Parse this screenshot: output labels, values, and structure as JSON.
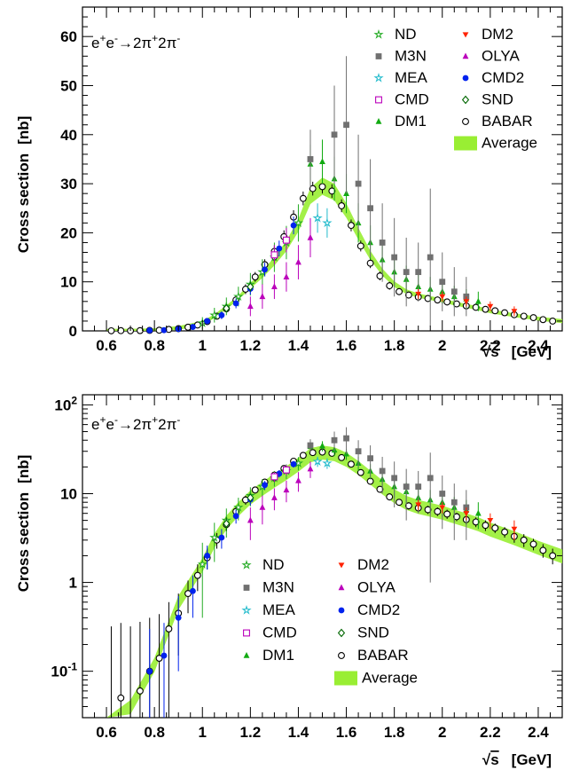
{
  "process": {
    "base": "e",
    "sup1": "+",
    "mid": "e",
    "sup2": "-",
    "arrow": "→",
    "two_a": "2π",
    "sup3": "+",
    "two_b": "2π",
    "sup4": "-"
  },
  "xlabel": {
    "sqrt": "√",
    "s": "s",
    "unit": "[GeV]"
  },
  "ylabel": {
    "text": "Cross section",
    "unit": "[nb]"
  },
  "legend": [
    {
      "name": "ND",
      "color": "#22aa22",
      "marker": "star-open"
    },
    {
      "name": "DM2",
      "color": "#ff2200",
      "marker": "triangle-down"
    },
    {
      "name": "M3N",
      "color": "#707070",
      "marker": "square"
    },
    {
      "name": "OLYA",
      "color": "#bb00bb",
      "marker": "triangle-up"
    },
    {
      "name": "MEA",
      "color": "#22bbcc",
      "marker": "star-open"
    },
    {
      "name": "CMD2",
      "color": "#0022ee",
      "marker": "circle"
    },
    {
      "name": "CMD",
      "color": "#bb00bb",
      "marker": "square-open"
    },
    {
      "name": "SND",
      "color": "#006600",
      "marker": "diamond-open"
    },
    {
      "name": "DM1",
      "color": "#11aa11",
      "marker": "triangle-up"
    },
    {
      "name": "BABAR",
      "color": "#000000",
      "marker": "circle-open"
    },
    {
      "name": "Average",
      "color": "#99ee33",
      "marker": "box"
    }
  ],
  "chart_data": [
    {
      "type": "scatter",
      "yscale": "linear",
      "xlim": [
        0.5,
        2.5
      ],
      "ylim": [
        0,
        66
      ],
      "xticks": [
        "0.6",
        "0.8",
        "1",
        "1.2",
        "1.4",
        "1.6",
        "1.8",
        "2",
        "2.2",
        "2.4"
      ],
      "yticks": [
        "0",
        "10",
        "20",
        "30",
        "40",
        "50",
        "60"
      ],
      "legend_position": "top-right",
      "average_band": [
        [
          0.6,
          0.02
        ],
        [
          0.7,
          0.04
        ],
        [
          0.8,
          0.12
        ],
        [
          0.9,
          0.6
        ],
        [
          1.0,
          1.6
        ],
        [
          1.05,
          3.0
        ],
        [
          1.1,
          4.8
        ],
        [
          1.15,
          6.8
        ],
        [
          1.2,
          9.2
        ],
        [
          1.25,
          11.5
        ],
        [
          1.3,
          14.2
        ],
        [
          1.35,
          17.3
        ],
        [
          1.4,
          21.5
        ],
        [
          1.45,
          27.5
        ],
        [
          1.5,
          29.5
        ],
        [
          1.55,
          28.3
        ],
        [
          1.6,
          24.5
        ],
        [
          1.65,
          19.8
        ],
        [
          1.7,
          15.4
        ],
        [
          1.75,
          12.0
        ],
        [
          1.8,
          9.5
        ],
        [
          1.85,
          8.0
        ],
        [
          1.9,
          7.2
        ],
        [
          1.95,
          6.7
        ],
        [
          2.0,
          6.2
        ],
        [
          2.05,
          5.6
        ],
        [
          2.1,
          5.1
        ],
        [
          2.15,
          4.6
        ],
        [
          2.2,
          4.0
        ],
        [
          2.3,
          3.2
        ],
        [
          2.4,
          2.5
        ],
        [
          2.5,
          2.0
        ]
      ],
      "series": [
        {
          "name": "BABAR",
          "x": [
            0.62,
            0.66,
            0.7,
            0.74,
            0.78,
            0.82,
            0.86,
            0.9,
            0.94,
            0.98,
            1.02,
            1.06,
            1.1,
            1.14,
            1.18,
            1.22,
            1.26,
            1.3,
            1.34,
            1.38,
            1.42,
            1.46,
            1.5,
            1.54,
            1.58,
            1.62,
            1.66,
            1.7,
            1.74,
            1.78,
            1.82,
            1.86,
            1.9,
            1.94,
            1.98,
            2.02,
            2.06,
            2.1,
            2.14,
            2.18,
            2.22,
            2.26,
            2.3,
            2.34,
            2.38,
            2.42,
            2.46
          ],
          "y": [
            0.02,
            0.05,
            0.02,
            0.06,
            0.1,
            0.14,
            0.3,
            0.45,
            0.75,
            1.2,
            1.9,
            3.0,
            4.5,
            6.3,
            8.5,
            11.0,
            13.5,
            16.2,
            19.2,
            23.2,
            27.0,
            29.0,
            29.4,
            28.5,
            25.5,
            21.5,
            17.3,
            13.8,
            11.2,
            9.2,
            8.0,
            7.3,
            6.9,
            6.6,
            6.3,
            5.9,
            5.5,
            5.1,
            4.8,
            4.4,
            4.1,
            3.7,
            3.3,
            3.0,
            2.7,
            2.3,
            2.0
          ],
          "err": [
            0.3,
            0.3,
            0.3,
            0.3,
            0.3,
            0.3,
            0.3,
            0.3,
            0.3,
            0.4,
            0.5,
            0.6,
            0.7,
            0.8,
            1.0,
            1.0,
            1.1,
            1.2,
            1.3,
            1.4,
            1.4,
            1.4,
            1.4,
            1.4,
            1.3,
            1.2,
            1.1,
            1.0,
            0.9,
            0.8,
            0.7,
            0.7,
            0.7,
            0.7,
            0.7,
            0.7,
            0.6,
            0.6,
            0.6,
            0.6,
            0.5,
            0.5,
            0.5,
            0.5,
            0.4,
            0.4,
            0.4
          ]
        },
        {
          "name": "ND",
          "x": [
            1.0,
            1.05,
            1.1,
            1.15,
            1.2,
            1.25,
            1.3,
            1.35,
            1.4
          ],
          "y": [
            1.6,
            3.2,
            5.0,
            7.0,
            9.5,
            12.0,
            15.0,
            18.0,
            22.0
          ],
          "err": [
            1.2,
            1.5,
            1.8,
            2.0,
            2.3,
            2.6,
            3.0,
            3.4,
            3.8
          ]
        },
        {
          "name": "DM1",
          "x": [
            1.45,
            1.5,
            1.55,
            1.6,
            1.65,
            1.7,
            1.75,
            1.8,
            1.85,
            1.9,
            1.95,
            2.0,
            2.05,
            2.1,
            2.15
          ],
          "y": [
            34.0,
            34.5,
            31.0,
            28.0,
            22.0,
            18.0,
            14.5,
            12.0,
            10.5,
            9.0,
            8.5,
            8.0,
            7.0,
            6.5,
            6.0
          ],
          "err": [
            4.0,
            4.5,
            4.5,
            4.0,
            4.0,
            3.5,
            3.0,
            3.0,
            2.8,
            2.5,
            2.5,
            2.5,
            2.2,
            2.0,
            2.0
          ]
        },
        {
          "name": "OLYA",
          "x": [
            1.2,
            1.25,
            1.3,
            1.35,
            1.4,
            1.45
          ],
          "y": [
            5.0,
            7.0,
            9.0,
            11.0,
            14.0,
            19.0
          ],
          "err": [
            2.0,
            2.5,
            2.5,
            3.0,
            3.5,
            4.0
          ]
        },
        {
          "name": "CMD2",
          "x": [
            0.78,
            0.84,
            0.9,
            0.96,
            1.02,
            1.08,
            1.14,
            1.2,
            1.26,
            1.32,
            1.38
          ],
          "y": [
            0.1,
            0.15,
            0.4,
            0.8,
            2.0,
            3.2,
            5.6,
            8.6,
            12.5,
            16.8,
            21.5
          ],
          "err": [
            0.2,
            0.2,
            0.3,
            0.4,
            0.6,
            0.8,
            1.0,
            1.2,
            1.4,
            1.6,
            1.8
          ]
        },
        {
          "name": "M3N",
          "x": [
            1.45,
            1.55,
            1.6,
            1.65,
            1.7,
            1.75,
            1.8,
            1.85,
            1.9,
            1.95,
            2.0,
            2.05,
            2.1
          ],
          "y": [
            35.0,
            40.0,
            42.0,
            30.0,
            25.0,
            18.0,
            15.0,
            12.0,
            12.0,
            15.0,
            10.0,
            8.0,
            7.0
          ],
          "err": [
            6.0,
            10.0,
            14.0,
            10.0,
            10.0,
            8.0,
            8.0,
            7.0,
            6.0,
            14.0,
            6.0,
            5.0,
            4.0
          ]
        },
        {
          "name": "MEA",
          "x": [
            1.48,
            1.52
          ],
          "y": [
            23.0,
            22.0
          ],
          "err": [
            3.0,
            3.0
          ]
        },
        {
          "name": "DM2",
          "x": [
            1.9,
            2.0,
            2.1,
            2.2,
            2.3
          ],
          "y": [
            7.5,
            7.0,
            6.0,
            5.0,
            4.0
          ],
          "err": [
            1.0,
            1.0,
            1.0,
            1.0,
            1.0
          ]
        },
        {
          "name": "SND",
          "x": [
            1.1,
            1.2,
            1.3
          ],
          "y": [
            4.6,
            9.0,
            15.0
          ],
          "err": [
            0.8,
            1.0,
            1.2
          ]
        },
        {
          "name": "CMD",
          "x": [
            1.3,
            1.35
          ],
          "y": [
            15.5,
            18.5
          ],
          "err": [
            2.0,
            2.5
          ]
        }
      ]
    },
    {
      "type": "scatter",
      "yscale": "log",
      "xlim": [
        0.5,
        2.5
      ],
      "ylim": [
        0.03,
        130
      ],
      "xticks": [
        "0.6",
        "0.8",
        "1",
        "1.2",
        "1.4",
        "1.6",
        "1.8",
        "2",
        "2.2",
        "2.4"
      ],
      "yticks": [
        "10^-1",
        "1",
        "10",
        "10^2"
      ],
      "legend_position": "bottom-center",
      "note": "same data as top panel"
    }
  ]
}
